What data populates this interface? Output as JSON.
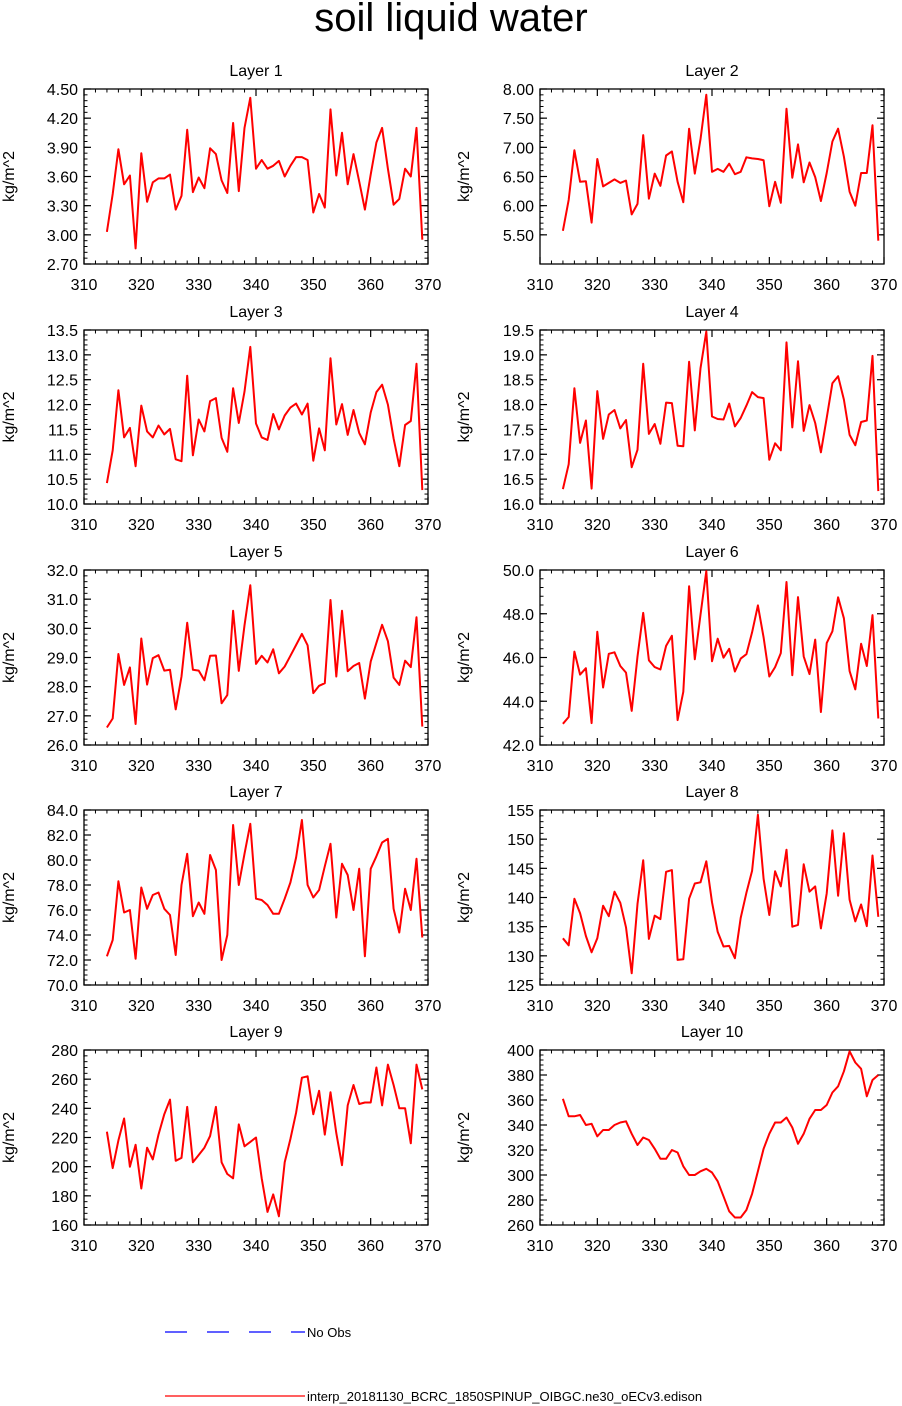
{
  "figure": {
    "title": "soil liquid water",
    "legend": [
      {
        "label": "No Obs",
        "color": "#0000ff",
        "dash": true
      },
      {
        "label": "interp_20181130_BCRC_1850SPINUP_OIBGC.ne30_oECv3.edison",
        "color": "#ff0000",
        "dash": false
      }
    ]
  },
  "chart_data": [
    {
      "type": "line",
      "title": "Layer 1",
      "ylabel": "kg/m^2",
      "xlim": [
        310,
        370
      ],
      "ylim": [
        2.7,
        4.5
      ],
      "xticks": [
        310,
        320,
        330,
        340,
        350,
        360,
        370
      ],
      "yticks": [
        "2.70",
        "3.00",
        "3.30",
        "3.60",
        "3.90",
        "4.20",
        "4.50"
      ],
      "x_start": 314,
      "values": [
        3.03,
        3.42,
        3.88,
        3.52,
        3.61,
        2.86,
        3.84,
        3.34,
        3.54,
        3.58,
        3.58,
        3.62,
        3.26,
        3.4,
        4.08,
        3.44,
        3.59,
        3.48,
        3.89,
        3.83,
        3.56,
        3.43,
        4.15,
        3.45,
        4.1,
        4.41,
        3.68,
        3.77,
        3.68,
        3.71,
        3.76,
        3.6,
        3.71,
        3.8,
        3.8,
        3.77,
        3.23,
        3.42,
        3.28,
        4.29,
        3.61,
        4.05,
        3.52,
        3.83,
        3.55,
        3.26,
        3.62,
        3.95,
        4.1,
        3.68,
        3.31,
        3.37,
        3.68,
        3.6,
        4.1,
        2.95
      ]
    },
    {
      "type": "line",
      "title": "Layer 2",
      "ylabel": "kg/m^2",
      "xlim": [
        310,
        370
      ],
      "ylim": [
        5.0,
        8.0
      ],
      "xticks": [
        310,
        320,
        330,
        340,
        350,
        360,
        370
      ],
      "yticks": [
        "5.50",
        "6.00",
        "6.50",
        "7.00",
        "7.50",
        "8.00"
      ],
      "x_start": 314,
      "values": [
        5.57,
        6.1,
        6.95,
        6.41,
        6.42,
        5.71,
        6.8,
        6.33,
        6.39,
        6.45,
        6.39,
        6.43,
        5.85,
        6.03,
        7.21,
        6.12,
        6.55,
        6.34,
        6.86,
        6.93,
        6.41,
        6.06,
        7.32,
        6.55,
        7.14,
        7.9,
        6.58,
        6.63,
        6.58,
        6.72,
        6.54,
        6.58,
        6.83,
        6.81,
        6.8,
        6.78,
        5.99,
        6.41,
        6.05,
        7.66,
        6.48,
        7.05,
        6.4,
        6.74,
        6.49,
        6.08,
        6.56,
        7.1,
        7.32,
        6.84,
        6.24,
        6.0,
        6.56,
        6.56,
        7.38,
        5.4
      ]
    },
    {
      "type": "line",
      "title": "Layer 3",
      "ylabel": "kg/m^2",
      "xlim": [
        310,
        370
      ],
      "ylim": [
        10.0,
        13.5
      ],
      "xticks": [
        310,
        320,
        330,
        340,
        350,
        360,
        370
      ],
      "yticks": [
        "10.0",
        "10.5",
        "11.0",
        "11.5",
        "12.0",
        "12.5",
        "13.0",
        "13.5"
      ],
      "x_start": 314,
      "values": [
        10.42,
        11.08,
        12.29,
        11.34,
        11.53,
        10.76,
        11.98,
        11.46,
        11.34,
        11.58,
        11.4,
        11.51,
        10.9,
        10.86,
        12.58,
        10.98,
        11.7,
        11.46,
        12.07,
        12.13,
        11.33,
        11.05,
        12.33,
        11.63,
        12.26,
        13.16,
        11.62,
        11.34,
        11.29,
        11.81,
        11.5,
        11.78,
        11.94,
        12.02,
        11.8,
        12.02,
        10.87,
        11.52,
        11.08,
        12.93,
        11.6,
        12.01,
        11.39,
        11.89,
        11.43,
        11.2,
        11.84,
        12.25,
        12.4,
        12.0,
        11.32,
        10.76,
        11.59,
        11.67,
        12.82,
        10.28
      ]
    },
    {
      "type": "line",
      "title": "Layer 4",
      "ylabel": "kg/m^2",
      "xlim": [
        310,
        370
      ],
      "ylim": [
        16.0,
        19.5
      ],
      "xticks": [
        310,
        320,
        330,
        340,
        350,
        360,
        370
      ],
      "yticks": [
        "16.0",
        "16.5",
        "17.0",
        "17.5",
        "18.0",
        "18.5",
        "19.0",
        "19.5"
      ],
      "x_start": 314,
      "values": [
        16.3,
        16.8,
        18.33,
        17.23,
        17.68,
        16.31,
        18.27,
        17.31,
        17.8,
        17.89,
        17.52,
        17.69,
        16.74,
        17.09,
        18.82,
        17.41,
        17.61,
        17.21,
        18.04,
        18.03,
        17.17,
        17.16,
        18.86,
        17.48,
        18.73,
        19.47,
        17.76,
        17.71,
        17.7,
        18.02,
        17.56,
        17.73,
        17.98,
        18.25,
        18.15,
        18.13,
        16.89,
        17.22,
        17.08,
        19.25,
        17.54,
        18.87,
        17.47,
        17.99,
        17.63,
        17.04,
        17.73,
        18.43,
        18.57,
        18.1,
        17.39,
        17.18,
        17.65,
        17.68,
        18.98,
        16.26
      ]
    },
    {
      "type": "line",
      "title": "Layer 5",
      "ylabel": "kg/m^2",
      "xlim": [
        310,
        370
      ],
      "ylim": [
        26.0,
        32.0
      ],
      "xticks": [
        310,
        320,
        330,
        340,
        350,
        360,
        370
      ],
      "yticks": [
        "26.0",
        "27.0",
        "28.0",
        "29.0",
        "30.0",
        "31.0",
        "32.0"
      ],
      "x_start": 314,
      "values": [
        26.6,
        26.91,
        29.12,
        28.06,
        28.66,
        26.72,
        29.65,
        28.07,
        28.98,
        29.08,
        28.55,
        28.58,
        27.22,
        28.35,
        30.19,
        28.58,
        28.55,
        28.22,
        29.06,
        29.07,
        27.43,
        27.71,
        30.6,
        28.54,
        30.1,
        31.48,
        28.78,
        29.06,
        28.83,
        29.28,
        28.46,
        28.69,
        29.06,
        29.43,
        29.81,
        29.42,
        27.78,
        28.03,
        28.12,
        30.97,
        28.35,
        30.6,
        28.53,
        28.71,
        28.81,
        27.59,
        28.86,
        29.5,
        30.12,
        29.56,
        28.31,
        28.06,
        28.89,
        28.67,
        30.38,
        26.63
      ]
    },
    {
      "type": "line",
      "title": "Layer 6",
      "ylabel": "kg/m^2",
      "xlim": [
        310,
        370
      ],
      "ylim": [
        42.0,
        50.0
      ],
      "xticks": [
        310,
        320,
        330,
        340,
        350,
        360,
        370
      ],
      "yticks": [
        "42.0",
        "44.0",
        "46.0",
        "48.0",
        "50.0"
      ],
      "x_start": 314,
      "values": [
        42.97,
        43.28,
        46.27,
        45.22,
        45.51,
        43.0,
        47.18,
        44.63,
        46.17,
        46.24,
        45.61,
        45.31,
        43.56,
        46.04,
        48.04,
        45.87,
        45.56,
        45.45,
        46.53,
        46.99,
        43.14,
        44.43,
        49.26,
        45.92,
        47.95,
        49.95,
        45.83,
        46.86,
        45.99,
        46.4,
        45.36,
        45.95,
        46.15,
        47.15,
        48.38,
        46.92,
        45.13,
        45.56,
        46.2,
        49.45,
        45.19,
        48.76,
        46.05,
        45.24,
        46.82,
        43.51,
        46.66,
        47.2,
        48.75,
        47.79,
        45.38,
        44.54,
        46.63,
        45.61,
        47.94,
        43.21
      ]
    },
    {
      "type": "line",
      "title": "Layer 7",
      "ylabel": "kg/m^2",
      "xlim": [
        310,
        370
      ],
      "ylim": [
        70.0,
        84.0
      ],
      "xticks": [
        310,
        320,
        330,
        340,
        350,
        360,
        370
      ],
      "yticks": [
        "70.0",
        "72.0",
        "74.0",
        "76.0",
        "78.0",
        "80.0",
        "82.0",
        "84.0"
      ],
      "x_start": 314,
      "values": [
        72.3,
        73.6,
        78.3,
        75.8,
        76.0,
        72.1,
        77.8,
        76.1,
        77.2,
        77.4,
        76.1,
        75.6,
        72.4,
        78.0,
        80.5,
        75.5,
        76.6,
        75.7,
        80.4,
        79.2,
        72.0,
        74.0,
        82.8,
        78.0,
        80.5,
        82.9,
        76.9,
        76.8,
        76.4,
        75.7,
        75.7,
        76.9,
        78.2,
        80.2,
        83.2,
        78.0,
        77.0,
        77.6,
        79.5,
        81.3,
        75.4,
        79.7,
        78.8,
        76.0,
        79.3,
        72.3,
        79.3,
        80.3,
        81.4,
        81.7,
        76.1,
        74.2,
        77.7,
        76.0,
        80.1,
        73.8
      ]
    },
    {
      "type": "line",
      "title": "Layer 8",
      "ylabel": "kg/m^2",
      "xlim": [
        310,
        370
      ],
      "ylim": [
        125,
        155
      ],
      "xticks": [
        310,
        320,
        330,
        340,
        350,
        360,
        370
      ],
      "yticks": [
        "125",
        "130",
        "135",
        "140",
        "145",
        "150",
        "155"
      ],
      "x_start": 314,
      "values": [
        133.0,
        131.8,
        139.8,
        137.3,
        133.4,
        130.6,
        133.0,
        138.6,
        136.8,
        141.0,
        139.1,
        134.9,
        127.0,
        138.9,
        146.4,
        132.9,
        136.9,
        136.3,
        144.4,
        144.7,
        129.3,
        129.4,
        139.8,
        142.4,
        142.6,
        146.2,
        139.2,
        134.1,
        131.6,
        131.7,
        129.6,
        136.5,
        140.8,
        144.6,
        154.2,
        143.2,
        137.0,
        144.5,
        141.9,
        148.2,
        135.0,
        135.3,
        145.7,
        141.0,
        141.9,
        134.7,
        140.7,
        151.5,
        140.3,
        151.0,
        139.6,
        135.9,
        138.8,
        135.1,
        147.2,
        136.7
      ]
    },
    {
      "type": "line",
      "title": "Layer 9",
      "ylabel": "kg/m^2",
      "xlim": [
        310,
        370
      ],
      "ylim": [
        160,
        280
      ],
      "xticks": [
        310,
        320,
        330,
        340,
        350,
        360,
        370
      ],
      "yticks": [
        "160",
        "180",
        "200",
        "220",
        "240",
        "260",
        "280"
      ],
      "x_start": 314,
      "values": [
        224,
        199,
        218,
        233,
        200,
        215,
        185,
        213,
        205,
        222,
        236,
        246,
        204,
        206,
        241,
        203,
        208,
        213,
        221,
        241,
        203,
        195,
        192,
        229,
        214,
        217,
        220,
        192,
        169,
        181,
        166,
        203,
        219,
        237,
        261,
        262,
        236,
        252,
        222,
        251,
        223,
        201,
        242,
        256,
        243,
        244,
        244,
        268,
        242,
        270,
        256,
        240,
        240,
        216,
        270,
        253
      ]
    },
    {
      "type": "line",
      "title": "Layer 10",
      "ylabel": "kg/m^2",
      "xlim": [
        310,
        370
      ],
      "ylim": [
        260,
        400
      ],
      "xticks": [
        310,
        320,
        330,
        340,
        350,
        360,
        370
      ],
      "yticks": [
        "260",
        "280",
        "300",
        "320",
        "340",
        "360",
        "380",
        "400"
      ],
      "x_start": 314,
      "values": [
        361,
        347,
        347,
        348,
        340,
        341,
        331,
        336,
        336,
        340,
        342,
        343,
        333,
        324,
        330,
        328,
        321,
        313,
        313,
        320,
        318,
        307,
        300,
        300,
        303,
        305,
        302,
        295,
        283,
        271,
        266,
        266,
        272,
        285,
        303,
        321,
        333,
        342,
        342,
        346,
        338,
        325,
        333,
        345,
        352,
        352,
        356,
        366,
        371,
        383,
        399,
        390,
        385,
        363,
        376,
        380
      ]
    }
  ]
}
